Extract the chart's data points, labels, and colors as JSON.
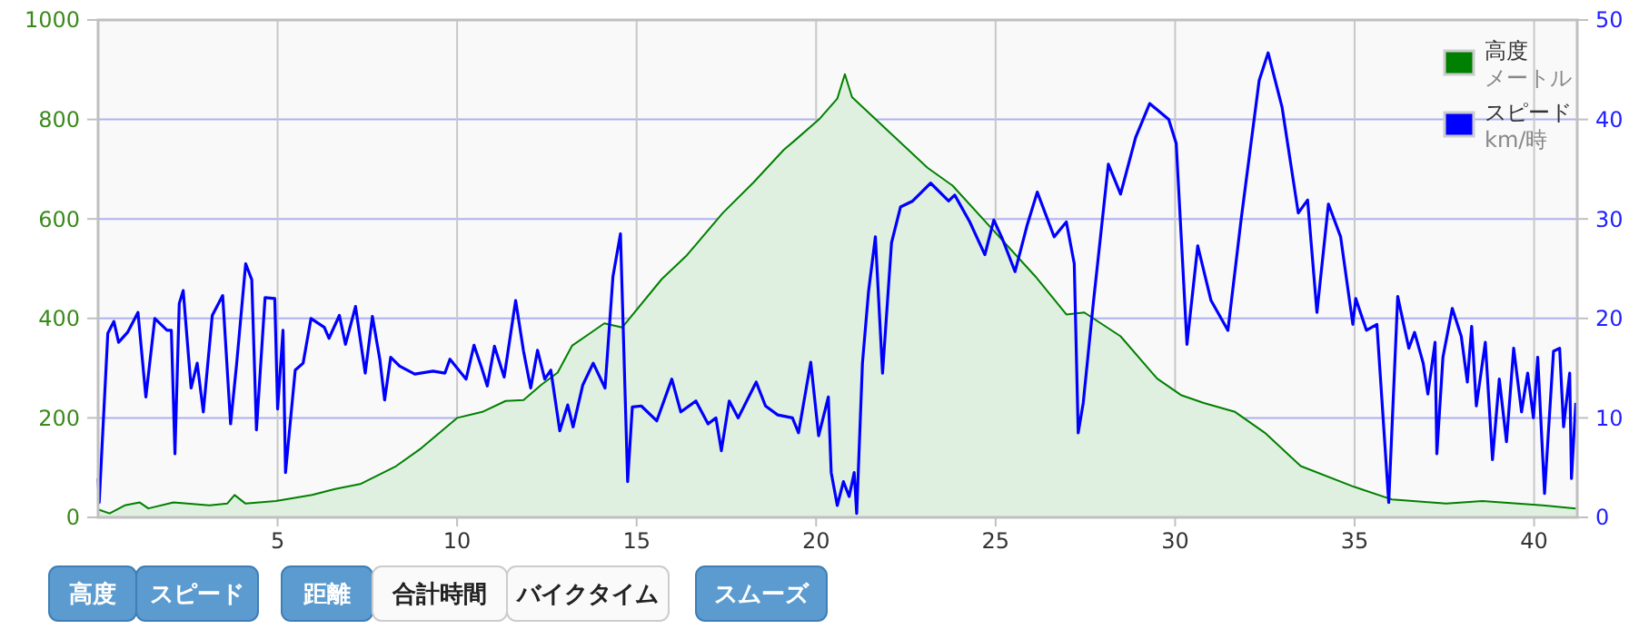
{
  "chart_data": {
    "type": "area",
    "xlim": [
      0,
      41.2
    ],
    "xticks": [
      5,
      10,
      15,
      20,
      25,
      30,
      35,
      40
    ],
    "ylim": [
      0,
      1000
    ],
    "yticks": [
      0,
      200,
      400,
      600,
      800,
      1000
    ],
    "y2lim": [
      0,
      50
    ],
    "y2ticks": [
      0,
      10,
      20,
      30,
      40,
      50
    ],
    "grid": true,
    "legend": "top right",
    "annotations": [
      "高度",
      "スピード",
      "距離",
      "合計時間",
      "バイクタイム",
      "スムーズ",
      "メートル",
      "km/時"
    ],
    "series": [
      {
        "name": "高度",
        "color": "#008000",
        "x": [
          0,
          0.32,
          0.74,
          1.16,
          1.4,
          2.1,
          3.1,
          3.6,
          3.8,
          4.1,
          4.95,
          5.96,
          6.6,
          7.3,
          8.3,
          9.0,
          10,
          10.7,
          11.35,
          11.85,
          12.35,
          12.8,
          13.2,
          13.7,
          14.1,
          14.6,
          15.7,
          16.4,
          17.4,
          18.25,
          19.1,
          19.41,
          20.08,
          20.59,
          20.8,
          21.0,
          21.93,
          23.1,
          23.8,
          24.95,
          26.1,
          26.97,
          27.47,
          28.48,
          29.5,
          30.16,
          30.8,
          31.67,
          32.5,
          33.5,
          35.0,
          36.04,
          37.55,
          38.56,
          40.24,
          41.16
        ],
        "values": [
          16,
          8,
          24,
          30,
          18,
          30,
          24,
          28,
          45,
          28,
          33,
          45,
          57,
          67,
          103,
          139,
          200,
          212,
          234,
          236,
          267,
          291,
          345,
          370,
          390,
          382,
          479,
          527,
          612,
          673,
          739,
          758,
          800,
          842,
          891,
          845,
          782,
          703,
          667,
          576,
          485,
          408,
          412,
          364,
          279,
          246,
          230,
          212,
          170,
          103,
          61,
          36,
          28,
          33,
          24,
          18
        ]
      },
      {
        "name": "スピード",
        "type": "line",
        "axis": "y2",
        "color": "#0000ff",
        "x": [
          0,
          0.03,
          0.27,
          0.44,
          0.57,
          0.82,
          1.11,
          1.33,
          1.58,
          1.92,
          2.04,
          2.14,
          2.26,
          2.37,
          2.59,
          2.76,
          2.93,
          3.18,
          3.47,
          3.69,
          3.86,
          4.11,
          4.28,
          4.41,
          4.65,
          4.92,
          5.0,
          5.15,
          5.22,
          5.49,
          5.71,
          5.93,
          6.3,
          6.43,
          6.72,
          6.89,
          7.17,
          7.44,
          7.64,
          7.85,
          7.98,
          8.15,
          8.4,
          8.82,
          9.33,
          9.66,
          9.8,
          10.25,
          10.47,
          10.67,
          10.84,
          11.04,
          11.31,
          11.63,
          11.85,
          12.05,
          12.24,
          12.44,
          12.61,
          12.86,
          13.08,
          13.23,
          13.5,
          13.79,
          14.12,
          14.34,
          14.55,
          14.75,
          14.88,
          15.13,
          15.56,
          15.98,
          16.23,
          16.65,
          16.99,
          17.21,
          17.36,
          17.58,
          17.83,
          18.33,
          18.59,
          18.93,
          19.34,
          19.51,
          19.85,
          20.07,
          20.34,
          20.42,
          20.59,
          20.76,
          20.92,
          21.06,
          21.13,
          21.29,
          21.46,
          21.65,
          21.85,
          22.1,
          22.35,
          22.69,
          23.19,
          23.69,
          23.86,
          24.28,
          24.7,
          24.95,
          25.2,
          25.54,
          25.88,
          26.16,
          26.63,
          26.97,
          27.19,
          27.3,
          27.44,
          27.72,
          28.14,
          28.48,
          28.9,
          29.29,
          29.82,
          30.03,
          30.33,
          30.63,
          31,
          31.47,
          31.84,
          32.34,
          32.59,
          32.98,
          33.43,
          33.69,
          33.95,
          34.27,
          34.61,
          34.95,
          35.03,
          35.33,
          35.62,
          35.95,
          36.2,
          36.51,
          36.67,
          36.91,
          37.04,
          37.24,
          37.29,
          37.46,
          37.72,
          37.97,
          38.14,
          38.26,
          38.39,
          38.64,
          38.84,
          39.03,
          39.23,
          39.43,
          39.65,
          39.82,
          39.98,
          40.1,
          40.29,
          40.54,
          40.71,
          40.82,
          40.99,
          41.04,
          41.16
        ],
        "values": [
          3.9,
          1.5,
          18.5,
          19.7,
          17.6,
          18.6,
          20.6,
          12.1,
          20,
          18.8,
          18.8,
          6.4,
          21.5,
          22.8,
          13,
          15.5,
          10.6,
          20.3,
          22.3,
          9.4,
          15.5,
          25.5,
          23.9,
          8.8,
          22.1,
          22,
          10.9,
          18.8,
          4.5,
          14.8,
          15.5,
          20,
          19.1,
          18,
          20.3,
          17.4,
          21.2,
          14.5,
          20.2,
          15.8,
          11.8,
          16.1,
          15.2,
          14.4,
          14.7,
          14.5,
          15.9,
          13.9,
          17.3,
          15.2,
          13.2,
          17.2,
          14.1,
          21.8,
          16.7,
          13,
          16.8,
          13.9,
          14.8,
          8.7,
          11.3,
          9.1,
          13.3,
          15.5,
          13,
          24.2,
          28.5,
          3.6,
          11.1,
          11.2,
          9.7,
          13.9,
          10.6,
          11.7,
          9.4,
          10,
          6.7,
          11.7,
          10,
          13.6,
          11.2,
          10.3,
          10,
          8.5,
          15.6,
          8.2,
          12.1,
          4.5,
          1.2,
          3.6,
          2.1,
          4.5,
          0.4,
          15.5,
          22.7,
          28.2,
          14.5,
          27.6,
          31.2,
          31.8,
          33.6,
          31.8,
          32.4,
          29.7,
          26.4,
          29.9,
          27.9,
          24.7,
          29.4,
          32.7,
          28.2,
          29.7,
          25.5,
          8.5,
          11.5,
          21.5,
          35.5,
          32.5,
          38.2,
          41.6,
          40,
          37.6,
          17.4,
          27.3,
          21.8,
          18.8,
          30,
          43.9,
          46.7,
          41.2,
          30.6,
          31.9,
          20.6,
          31.5,
          28.2,
          19.4,
          22,
          18.8,
          19.4,
          1.5,
          22.2,
          17,
          18.6,
          15.5,
          12.4,
          17.6,
          6.4,
          16.1,
          21,
          18.2,
          13.6,
          19.2,
          11.2,
          17.6,
          5.8,
          13.9,
          7.6,
          17,
          10.6,
          14.5,
          10,
          16.1,
          2.4,
          16.7,
          17,
          9.1,
          14.5,
          3.9,
          11.5
        ]
      }
    ]
  }
}
